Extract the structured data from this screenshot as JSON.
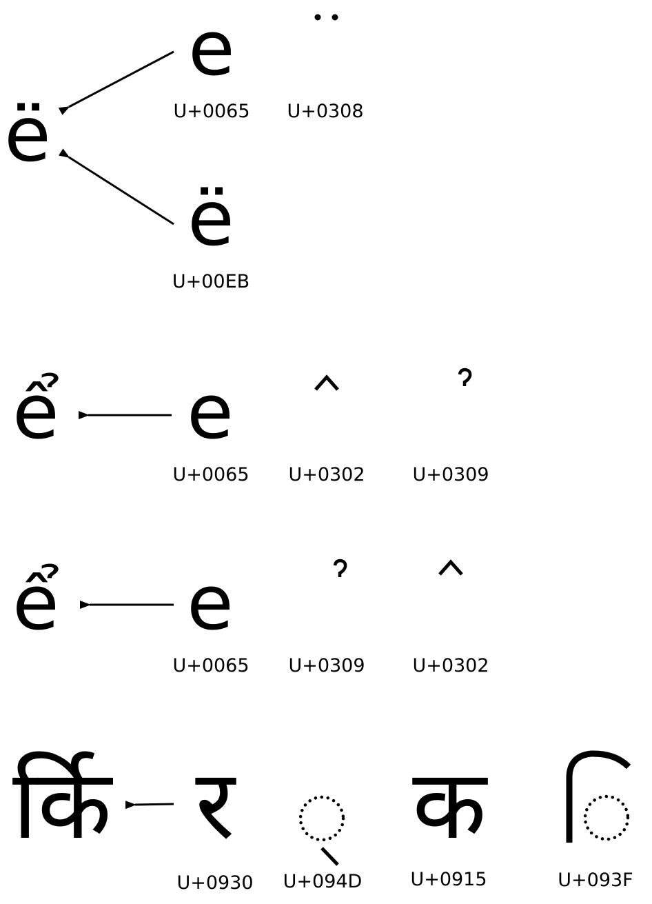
{
  "rows": [
    {
      "composed": "ë",
      "sources": [
        {
          "chars": [
            "e",
            "̈"
          ],
          "codepoints": [
            "U+0065",
            "U+0308"
          ]
        },
        {
          "chars": [
            "ë"
          ],
          "codepoints": [
            "U+00EB"
          ]
        }
      ]
    },
    {
      "composed": "ể",
      "chars": [
        "e",
        "̂",
        "̉"
      ],
      "codepoints": [
        "U+0065",
        "U+0302",
        "U+0309"
      ]
    },
    {
      "composed": "ể",
      "chars": [
        "e",
        "̉",
        "̂"
      ],
      "codepoints": [
        "U+0065",
        "U+0309",
        "U+0302"
      ]
    },
    {
      "composed": "र्कि",
      "chars": [
        "र",
        "्",
        "क",
        "ि"
      ],
      "codepoints": [
        "U+0930",
        "U+094D",
        "U+0915",
        "U+093F"
      ]
    }
  ]
}
